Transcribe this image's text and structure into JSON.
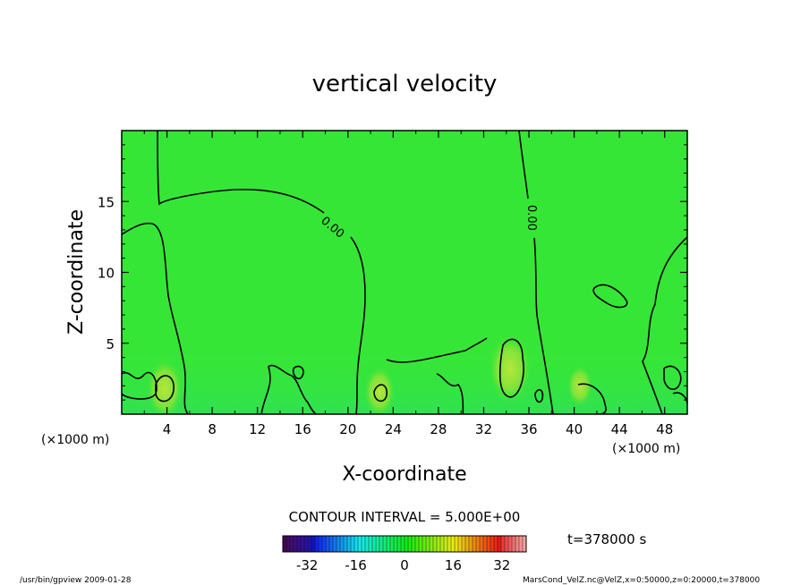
{
  "chart_data": {
    "type": "heatmap",
    "title": "vertical velocity",
    "xlabel": "X-coordinate",
    "ylabel": "Z-coordinate",
    "x_unit": "(×1000 m)",
    "z_unit": "(×1000 m)",
    "xlim": [
      0,
      50
    ],
    "ylim": [
      0,
      20
    ],
    "x_ticks": [
      "4",
      "8",
      "12",
      "16",
      "20",
      "24",
      "28",
      "32",
      "36",
      "40",
      "44",
      "48"
    ],
    "y_ticks": [
      "5",
      "10",
      "15"
    ],
    "contour_labels": [
      "0.00",
      "0.00"
    ],
    "contour_interval": "CONTOUR INTERVAL = 5.000E+00",
    "colorbar_ticks": [
      "-32",
      "-16",
      "0",
      "16",
      "32"
    ],
    "colorbar_range": [
      -40,
      40
    ],
    "time_label": "t=378000  s",
    "background_color": "#36e636",
    "warm_spots": [
      {
        "x": 3.8,
        "z": 1.8,
        "value": 8
      },
      {
        "x": 22.8,
        "z": 1.6,
        "value": 6
      },
      {
        "x": 34.3,
        "z": 3.2,
        "value": 10
      },
      {
        "x": 40.5,
        "z": 2.0,
        "value": 4
      }
    ]
  },
  "footer": {
    "left": "/usr/bin/gpview   2009-01-28",
    "right": "MarsCond_VelZ.nc@VelZ,x=0:50000,z=0:20000,t=378000"
  }
}
